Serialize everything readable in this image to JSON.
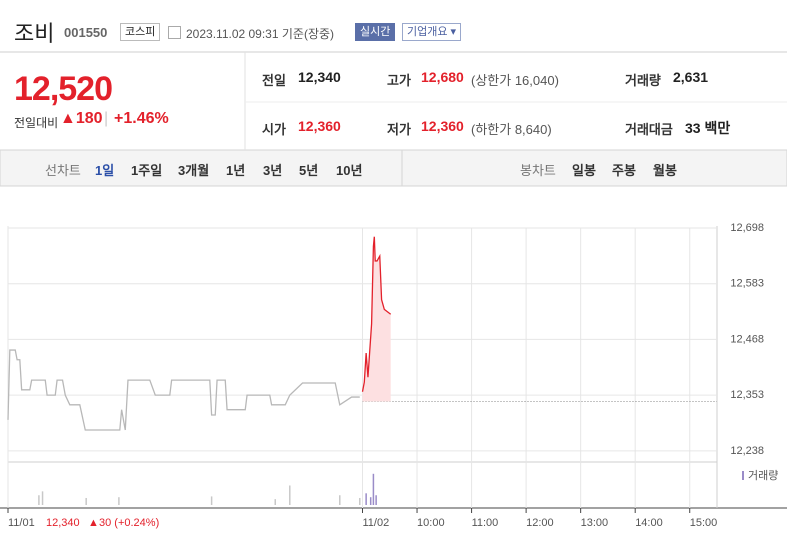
{
  "header": {
    "name": "조비",
    "code": "001550",
    "market": "코스피",
    "timestamp": "2023.11.02 09:31 기준(장중)",
    "realtime": "실시간",
    "company_info": "기업개요"
  },
  "quote": {
    "price": "12,520",
    "change_label": "전일대비",
    "change": "180",
    "change_pct": "+1.46%",
    "stats": [
      {
        "label": "전일",
        "value": "12,340"
      },
      {
        "label": "고가",
        "value": "12,680",
        "note": "(상한가 16,040)"
      },
      {
        "label": "거래량",
        "value": "2,631"
      },
      {
        "label": "시가",
        "value": "12,360"
      },
      {
        "label": "저가",
        "value": "12,360",
        "note": "(하한가 8,640)"
      },
      {
        "label": "거래대금",
        "value": "33 백만"
      }
    ]
  },
  "tabs": {
    "line_label": "선차트",
    "line": [
      "1일",
      "1주일",
      "3개월",
      "1년",
      "3년",
      "5년",
      "10년"
    ],
    "candle_label": "봉차트",
    "candle": [
      "일봉",
      "주봉",
      "월봉"
    ]
  },
  "chart_data": {
    "type": "line",
    "xlim": [
      -390,
      390
    ],
    "xticks": [
      {
        "value": -390,
        "label": "11/01"
      },
      {
        "value": 0,
        "label": "11/02"
      },
      {
        "value": 60,
        "label": "10:00"
      },
      {
        "value": 120,
        "label": "11:00"
      },
      {
        "value": 180,
        "label": "12:00"
      },
      {
        "value": 240,
        "label": "13:00"
      },
      {
        "value": 300,
        "label": "14:00"
      },
      {
        "value": 360,
        "label": "15:00"
      }
    ],
    "ylim": [
      12215,
      12698
    ],
    "yticks": [
      {
        "value": 12698,
        "label": "12,698"
      },
      {
        "value": 12583,
        "label": "12,583"
      },
      {
        "value": 12468,
        "label": "12,468"
      },
      {
        "value": 12353,
        "label": "12,353"
      },
      {
        "value": 12238,
        "label": "12,238"
      }
    ],
    "prev_close": 12340,
    "series": [
      {
        "color": "#b8b8b8",
        "x": [
          -390,
          -388,
          -382,
          -380,
          -377,
          -375,
          -366,
          -364,
          -349,
          -347,
          -338,
          -336,
          -330,
          -327,
          -322,
          -311,
          -305,
          -267,
          -265,
          -261,
          -258,
          -234,
          -228,
          -212,
          -210,
          -168,
          -166,
          -162,
          -160,
          -151,
          -149,
          -129,
          -127,
          -102,
          -100,
          -85,
          -80,
          -66,
          -30,
          -25,
          -12,
          -3
        ],
        "values": [
          12302,
          12446,
          12446,
          12426,
          12426,
          12364,
          12364,
          12384,
          12384,
          12353,
          12353,
          12384,
          12384,
          12353,
          12333,
          12333,
          12281,
          12281,
          12323,
          12281,
          12384,
          12384,
          12353,
          12353,
          12384,
          12384,
          12312,
          12312,
          12384,
          12384,
          12323,
          12323,
          12353,
          12353,
          12333,
          12333,
          12353,
          12378,
          12378,
          12333,
          12349,
          12349
        ]
      },
      {
        "color": "#e3212b",
        "fill": "#fde0e1",
        "x": [
          0,
          2,
          4,
          6,
          10,
          12,
          13,
          14,
          16,
          19,
          21,
          24,
          31
        ],
        "values": [
          12360,
          12380,
          12440,
          12390,
          12500,
          12660,
          12680,
          12630,
          12630,
          12640,
          12550,
          12530,
          12520
        ]
      }
    ],
    "volume": {
      "name": "거래량",
      "ylim": [
        0,
        1000
      ],
      "x": [
        -356,
        -352,
        -304,
        -268,
        -166,
        -96,
        -80,
        -25,
        -3,
        4,
        9,
        12,
        15
      ],
      "values": [
        250,
        350,
        180,
        200,
        220,
        150,
        500,
        250,
        180,
        300,
        200,
        800,
        250
      ],
      "colors": [
        "#c8c8c8",
        "#c8c8c8",
        "#c8c8c8",
        "#c8c8c8",
        "#c8c8c8",
        "#c8c8c8",
        "#c8c8c8",
        "#c8c8c8",
        "#c8c8c8",
        "#9a8cc8",
        "#9a8cc8",
        "#9a8cc8",
        "#9a8cc8"
      ]
    },
    "prev_day": {
      "price": "12,340",
      "change": "30 (+0.24%)"
    }
  }
}
